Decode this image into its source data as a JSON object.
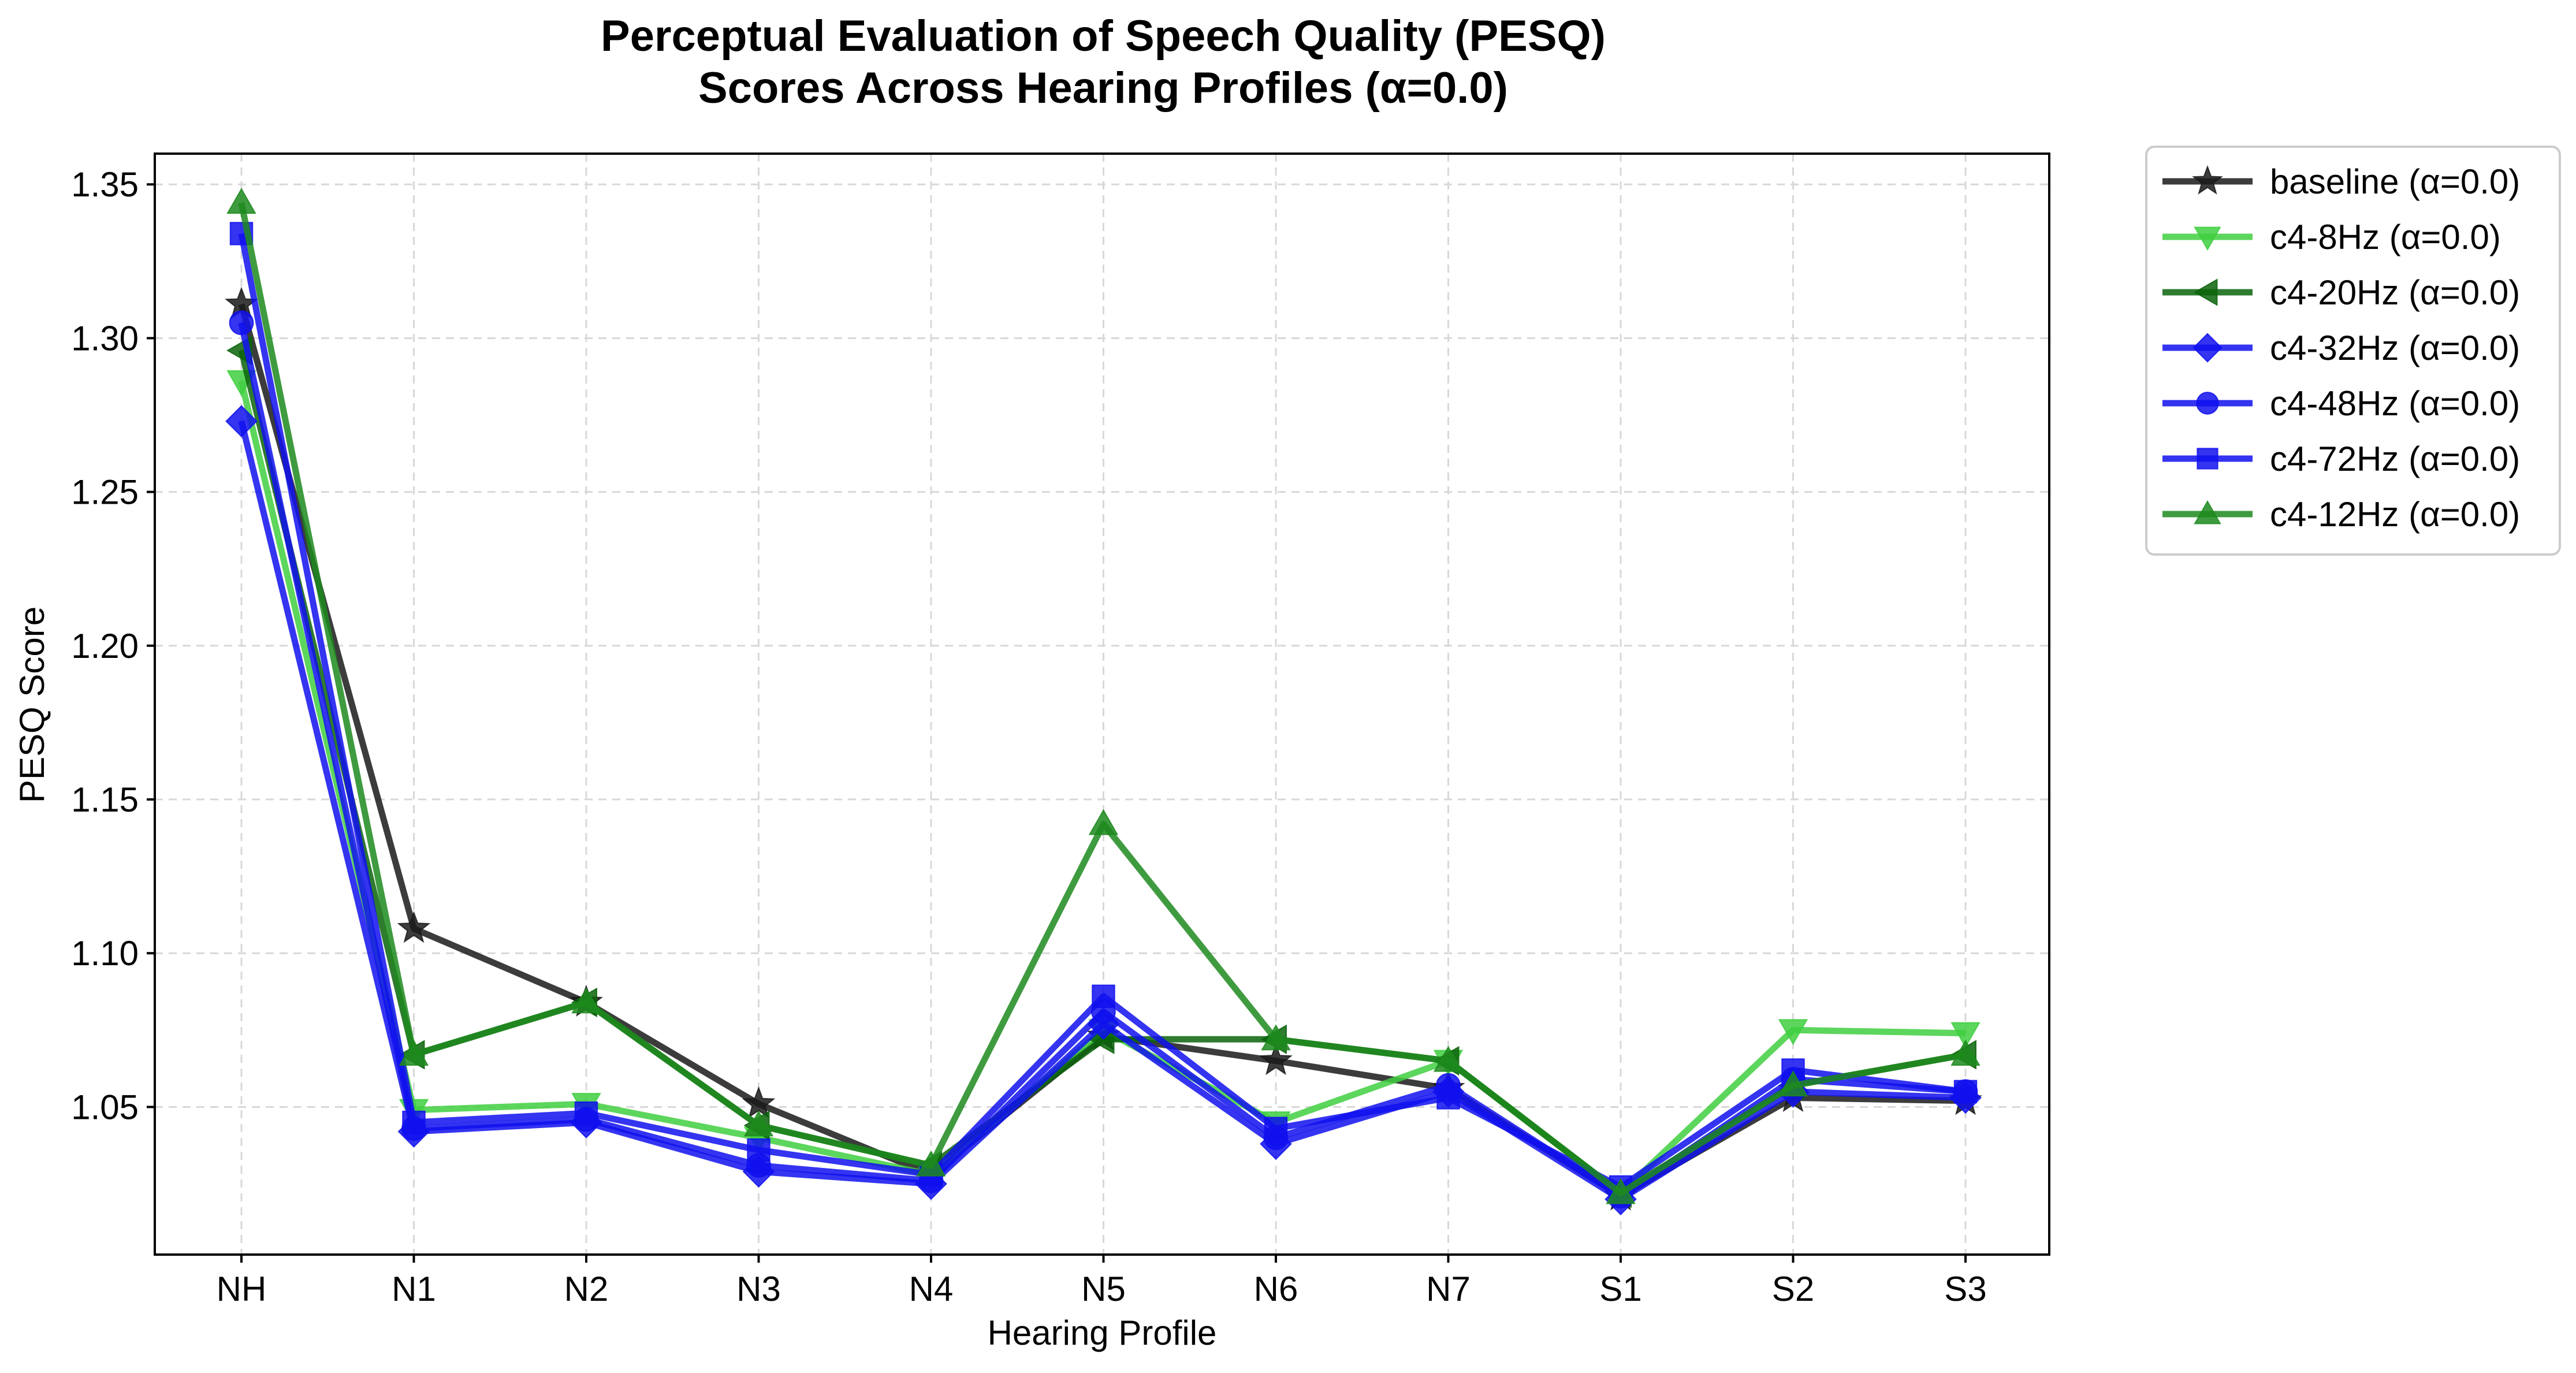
{
  "chart_data": {
    "type": "line",
    "title_lines": [
      "Perceptual Evaluation of Speech Quality (PESQ)",
      "Scores Across Hearing Profiles (α=0.0)"
    ],
    "xlabel": "Hearing Profile",
    "ylabel": "PESQ Score",
    "categories": [
      "NH",
      "N1",
      "N2",
      "N3",
      "N4",
      "N5",
      "N6",
      "N7",
      "S1",
      "S2",
      "S3"
    ],
    "ylim": [
      1.002,
      1.36
    ],
    "yticks": [
      "1.05",
      "1.10",
      "1.15",
      "1.20",
      "1.25",
      "1.30",
      "1.35"
    ],
    "ytick_values": [
      1.05,
      1.1,
      1.15,
      1.2,
      1.25,
      1.3,
      1.35
    ],
    "grid": true,
    "legend_position": "outside-top-right",
    "series": [
      {
        "name": "baseline (α=0.0)",
        "color": "#1a1a1a",
        "marker": "star",
        "values": [
          1.311,
          1.108,
          1.084,
          1.051,
          1.028,
          1.073,
          1.065,
          1.056,
          1.021,
          1.053,
          1.052
        ]
      },
      {
        "name": "c4-8Hz (α=0.0)",
        "color": "#3fcf3f",
        "marker": "triangle-down",
        "values": [
          1.286,
          1.049,
          1.051,
          1.04,
          1.028,
          1.075,
          1.045,
          1.065,
          1.022,
          1.075,
          1.074
        ]
      },
      {
        "name": "c4-20Hz (α=0.0)",
        "color": "#0a640a",
        "marker": "triangle-left",
        "values": [
          1.296,
          1.067,
          1.084,
          1.044,
          1.031,
          1.072,
          1.072,
          1.065,
          1.022,
          1.057,
          1.067
        ]
      },
      {
        "name": "c4-32Hz (α=0.0)",
        "color": "#1010ee",
        "marker": "diamond",
        "values": [
          1.273,
          1.042,
          1.045,
          1.029,
          1.025,
          1.077,
          1.038,
          1.055,
          1.02,
          1.055,
          1.053
        ]
      },
      {
        "name": "c4-48Hz (α=0.0)",
        "color": "#1010ee",
        "marker": "circle",
        "values": [
          1.305,
          1.043,
          1.046,
          1.031,
          1.026,
          1.081,
          1.04,
          1.057,
          1.021,
          1.059,
          1.055
        ]
      },
      {
        "name": "c4-72Hz (α=0.0)",
        "color": "#1010ee",
        "marker": "square",
        "values": [
          1.334,
          1.045,
          1.048,
          1.036,
          1.028,
          1.086,
          1.043,
          1.053,
          1.024,
          1.062,
          1.055
        ]
      },
      {
        "name": "c4-12Hz (α=0.0)",
        "color": "#1d8a1d",
        "marker": "triangle-up",
        "values": [
          1.344,
          1.067,
          1.084,
          1.044,
          1.031,
          1.142,
          1.072,
          1.065,
          1.022,
          1.057,
          1.067
        ]
      }
    ]
  }
}
